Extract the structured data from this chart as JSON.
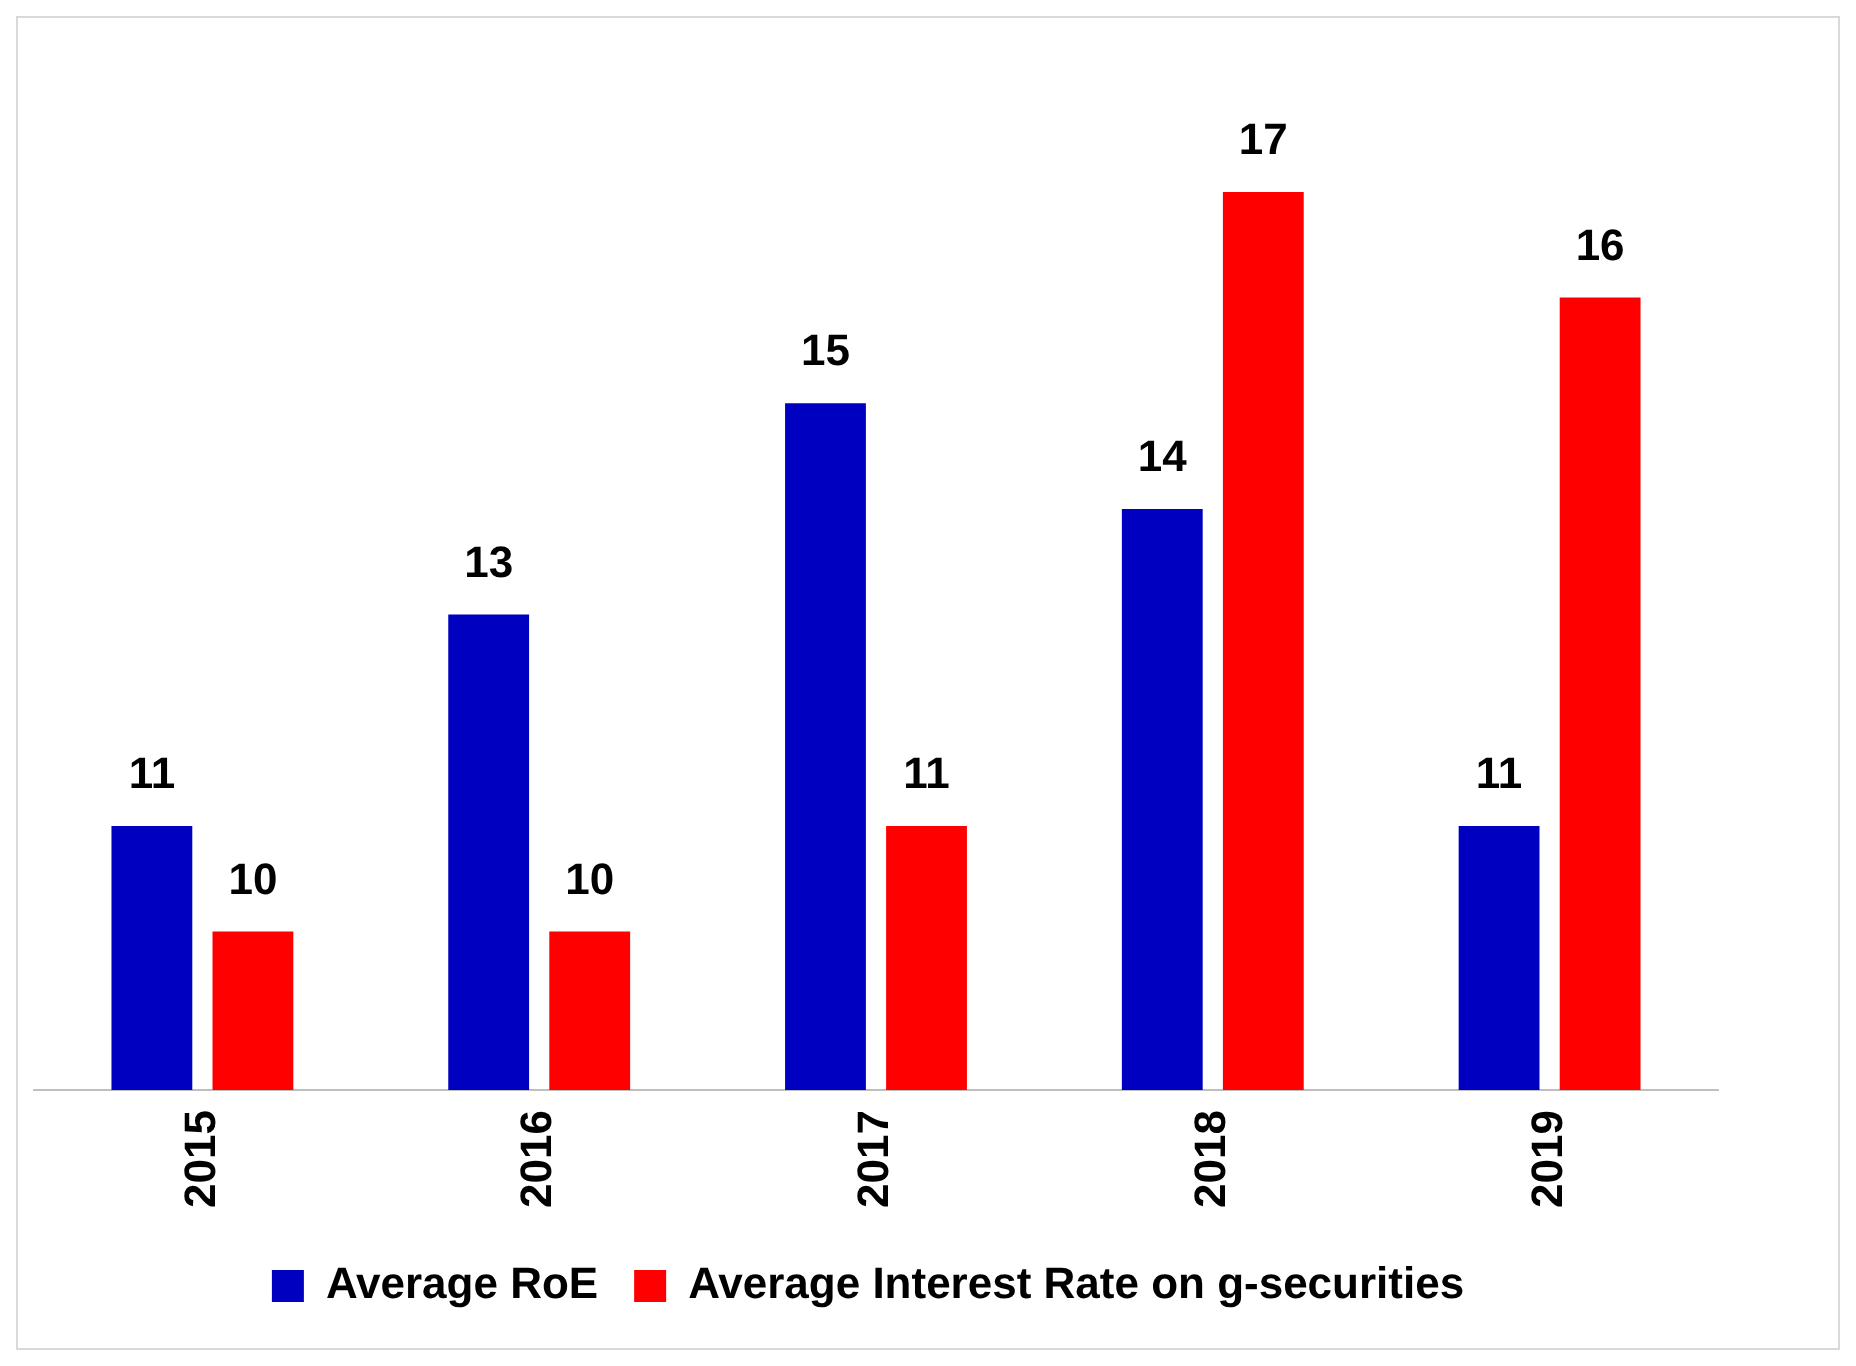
{
  "chart_data": {
    "type": "bar",
    "categories": [
      "2015",
      "2016",
      "2017",
      "2018",
      "2019"
    ],
    "series": [
      {
        "name": "Average RoE",
        "color": "#0000c0",
        "values": [
          11,
          13,
          15,
          14,
          11
        ]
      },
      {
        "name": "Average Interest Rate on g-securities",
        "color": "#ff0000",
        "values": [
          10,
          10,
          11,
          17,
          16
        ]
      }
    ],
    "tick_labels": "x",
    "data_labels": true,
    "legend": "bottom",
    "grid": false
  }
}
